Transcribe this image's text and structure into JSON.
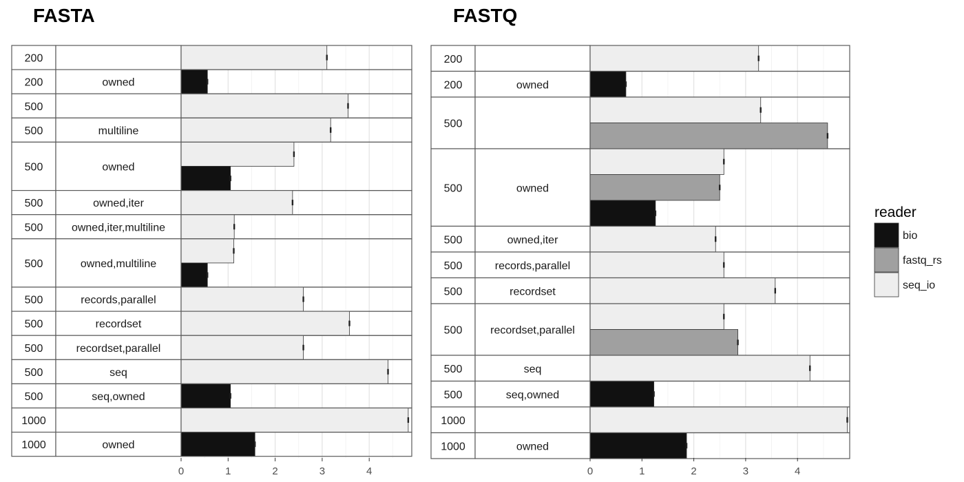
{
  "chart_data": [
    {
      "type": "bar",
      "title": "FASTA",
      "orientation": "horizontal",
      "xlabel": "",
      "ylabel": "",
      "xlim": [
        0,
        4.85
      ],
      "x_ticks": [
        "0",
        "1",
        "2",
        "3",
        "4"
      ],
      "grid": true,
      "rows": [
        {
          "size": "200",
          "variant": "",
          "bars": [
            {
              "reader": "seq_io",
              "value": 3.1
            }
          ]
        },
        {
          "size": "200",
          "variant": "owned",
          "bars": [
            {
              "reader": "bio",
              "value": 0.56
            }
          ]
        },
        {
          "size": "500",
          "variant": "",
          "bars": [
            {
              "reader": "seq_io",
              "value": 3.55
            }
          ]
        },
        {
          "size": "500",
          "variant": "multiline",
          "bars": [
            {
              "reader": "seq_io",
              "value": 3.18
            }
          ]
        },
        {
          "size": "500",
          "variant": "owned",
          "bars": [
            {
              "reader": "seq_io",
              "value": 2.4
            },
            {
              "reader": "bio",
              "value": 1.05
            }
          ]
        },
        {
          "size": "500",
          "variant": "owned,iter",
          "bars": [
            {
              "reader": "seq_io",
              "value": 2.37
            }
          ]
        },
        {
          "size": "500",
          "variant": "owned,iter,multiline",
          "bars": [
            {
              "reader": "seq_io",
              "value": 1.13
            }
          ]
        },
        {
          "size": "500",
          "variant": "owned,multiline",
          "bars": [
            {
              "reader": "seq_io",
              "value": 1.12
            },
            {
              "reader": "bio",
              "value": 0.56
            }
          ]
        },
        {
          "size": "500",
          "variant": "records,parallel",
          "bars": [
            {
              "reader": "seq_io",
              "value": 2.6
            }
          ]
        },
        {
          "size": "500",
          "variant": "recordset",
          "bars": [
            {
              "reader": "seq_io",
              "value": 3.58
            }
          ]
        },
        {
          "size": "500",
          "variant": "recordset,parallel",
          "bars": [
            {
              "reader": "seq_io",
              "value": 2.6
            }
          ]
        },
        {
          "size": "500",
          "variant": "seq",
          "bars": [
            {
              "reader": "seq_io",
              "value": 4.4
            }
          ]
        },
        {
          "size": "500",
          "variant": "seq,owned",
          "bars": [
            {
              "reader": "bio",
              "value": 1.05
            }
          ]
        },
        {
          "size": "1000",
          "variant": "",
          "bars": [
            {
              "reader": "seq_io",
              "value": 4.83
            }
          ]
        },
        {
          "size": "1000",
          "variant": "owned",
          "bars": [
            {
              "reader": "bio",
              "value": 1.57
            }
          ]
        }
      ]
    },
    {
      "type": "bar",
      "title": "FASTQ",
      "orientation": "horizontal",
      "xlabel": "",
      "ylabel": "",
      "xlim": [
        0,
        4.97
      ],
      "x_ticks": [
        "0",
        "1",
        "2",
        "3",
        "4"
      ],
      "grid": true,
      "rows": [
        {
          "size": "200",
          "variant": "",
          "bars": [
            {
              "reader": "seq_io",
              "value": 3.25
            }
          ]
        },
        {
          "size": "200",
          "variant": "owned",
          "bars": [
            {
              "reader": "bio",
              "value": 0.69
            }
          ]
        },
        {
          "size": "500",
          "variant": "",
          "bars": [
            {
              "reader": "seq_io",
              "value": 3.29
            },
            {
              "reader": "fastq_rs",
              "value": 4.58
            }
          ]
        },
        {
          "size": "500",
          "variant": "owned",
          "bars": [
            {
              "reader": "seq_io",
              "value": 2.58
            },
            {
              "reader": "fastq_rs",
              "value": 2.5
            },
            {
              "reader": "bio",
              "value": 1.26
            }
          ]
        },
        {
          "size": "500",
          "variant": "owned,iter",
          "bars": [
            {
              "reader": "seq_io",
              "value": 2.42
            }
          ]
        },
        {
          "size": "500",
          "variant": "records,parallel",
          "bars": [
            {
              "reader": "seq_io",
              "value": 2.58
            }
          ]
        },
        {
          "size": "500",
          "variant": "recordset",
          "bars": [
            {
              "reader": "seq_io",
              "value": 3.57
            }
          ]
        },
        {
          "size": "500",
          "variant": "recordset,parallel",
          "bars": [
            {
              "reader": "seq_io",
              "value": 2.58
            },
            {
              "reader": "fastq_rs",
              "value": 2.85
            }
          ]
        },
        {
          "size": "500",
          "variant": "seq",
          "bars": [
            {
              "reader": "seq_io",
              "value": 4.24
            }
          ]
        },
        {
          "size": "500",
          "variant": "seq,owned",
          "bars": [
            {
              "reader": "bio",
              "value": 1.23
            }
          ]
        },
        {
          "size": "1000",
          "variant": "",
          "bars": [
            {
              "reader": "seq_io",
              "value": 4.96
            }
          ]
        },
        {
          "size": "1000",
          "variant": "owned",
          "bars": [
            {
              "reader": "bio",
              "value": 1.86
            }
          ]
        }
      ]
    }
  ],
  "legend": {
    "title": "reader",
    "placement": "right",
    "items": [
      {
        "label": "bio",
        "color": "#111111"
      },
      {
        "label": "fastq_rs",
        "color": "#a0a0a0"
      },
      {
        "label": "seq_io",
        "color": "#eeeeee"
      }
    ]
  }
}
